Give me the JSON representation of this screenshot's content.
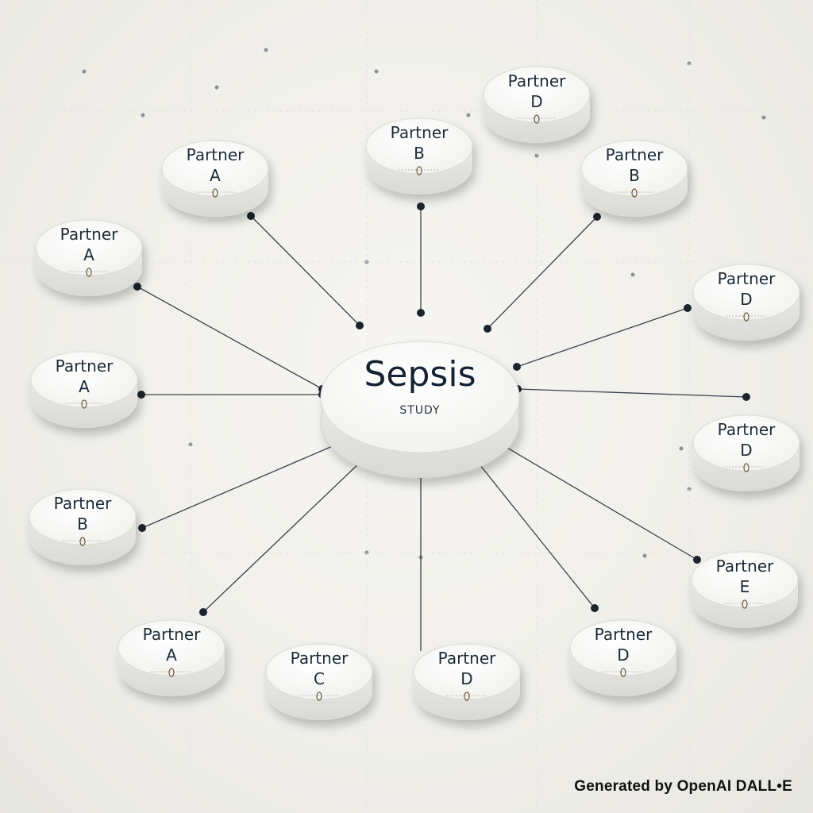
{
  "diagram": {
    "center": {
      "title": "Sepsis",
      "subtitle": "STUDY"
    },
    "partners": [
      {
        "line1": "Partner",
        "line2": "A"
      },
      {
        "line1": "Partner",
        "line2": "A"
      },
      {
        "line1": "Partner",
        "line2": "A"
      },
      {
        "line1": "Partner",
        "line2": "B"
      },
      {
        "line1": "Partner",
        "line2": "A"
      },
      {
        "line1": "Partner",
        "line2": "B"
      },
      {
        "line1": "Partner",
        "line2": "D"
      },
      {
        "line1": "Partner",
        "line2": "B"
      },
      {
        "line1": "Partner",
        "line2": "D"
      },
      {
        "line1": "Partner",
        "line2": "D"
      },
      {
        "line1": "Partner",
        "line2": "E"
      },
      {
        "line1": "Partner",
        "line2": "D"
      },
      {
        "line1": "Partner",
        "line2": "D"
      },
      {
        "line1": "Partner",
        "line2": "C"
      }
    ]
  },
  "watermark": "Generated by OpenAI DALL•E"
}
